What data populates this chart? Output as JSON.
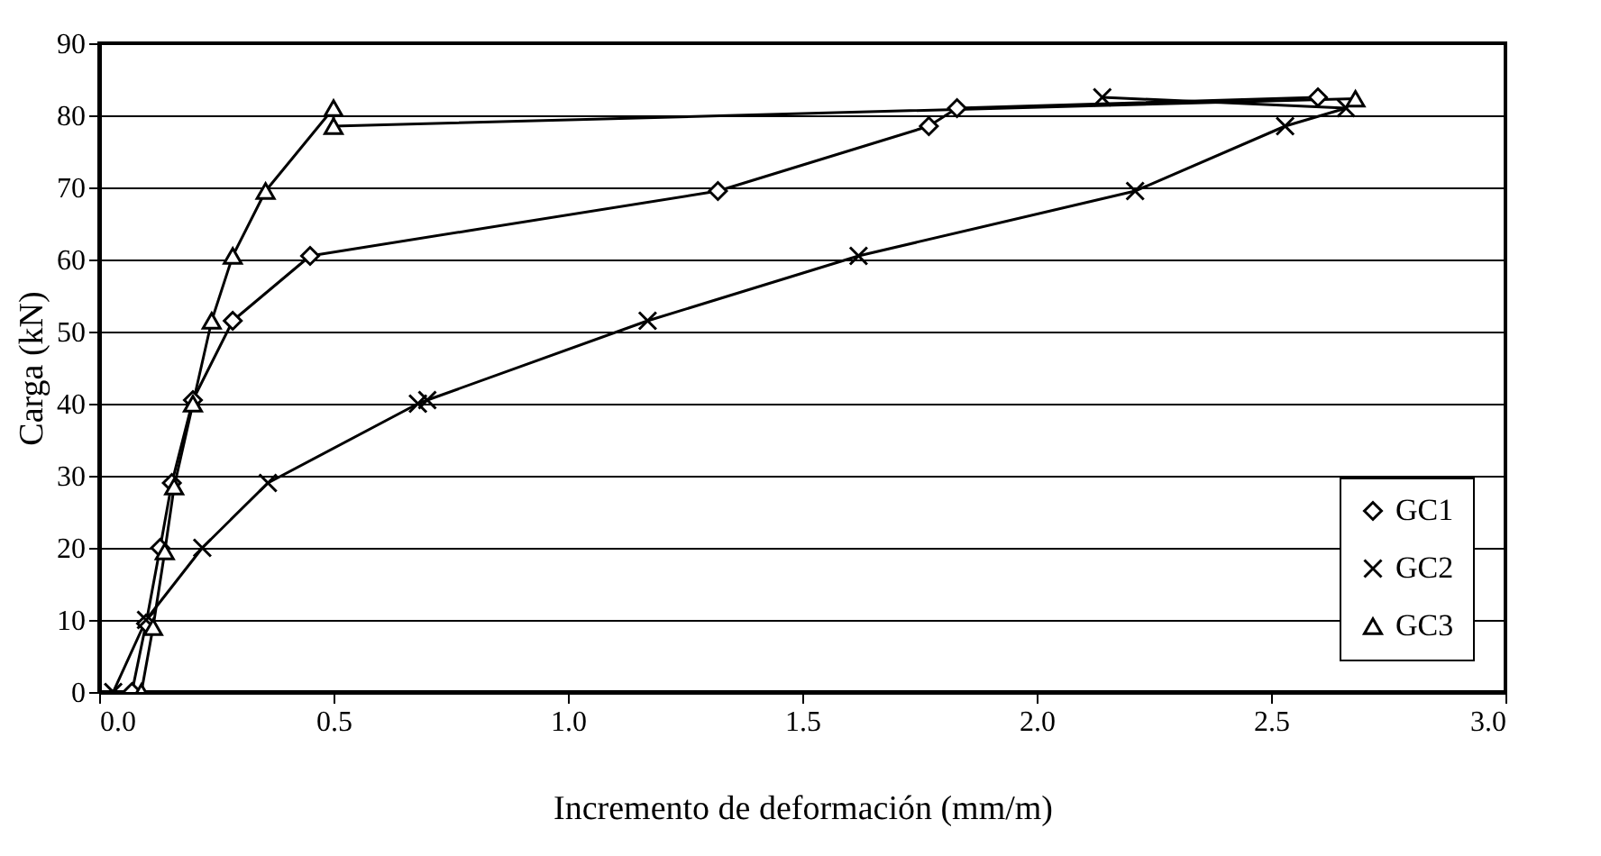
{
  "chart_data": {
    "type": "line",
    "xlabel": "Incremento de deformación (mm/m)",
    "ylabel": "Carga (kN)",
    "xlim": [
      0,
      3
    ],
    "xticks": [
      {
        "value": 0,
        "label": "0.0"
      },
      {
        "value": 0.5,
        "label": "0.5"
      },
      {
        "value": 1,
        "label": "1.0"
      },
      {
        "value": 1.5,
        "label": "1.5"
      },
      {
        "value": 2,
        "label": "2.0"
      },
      {
        "value": 2.5,
        "label": "2.5"
      },
      {
        "value": 3,
        "label": "3.0"
      }
    ],
    "ylim": [
      0,
      90
    ],
    "yticks": [
      0,
      10,
      20,
      30,
      40,
      50,
      60,
      70,
      80,
      90
    ],
    "grid": "y",
    "legend": "bottom right",
    "line_style": "solid",
    "series": [
      {
        "name": "GC1",
        "color": "#000000",
        "marker": "diamond",
        "x": [
          0.07,
          0.1,
          0.13,
          0.155,
          0.2,
          0.285,
          0.45,
          1.32,
          1.77,
          1.83,
          2.6
        ],
        "values": [
          0,
          9.5,
          20,
          29,
          40.5,
          51.5,
          60.5,
          69.5,
          78.5,
          81,
          82.5
        ]
      },
      {
        "name": "GC2",
        "color": "#000000",
        "marker": "cross",
        "x": [
          0.03,
          0.1,
          0.22,
          0.36,
          0.68,
          0.7,
          1.17,
          1.62,
          2.21,
          2.53,
          2.66,
          2.14
        ],
        "values": [
          0,
          10,
          20,
          29,
          40,
          40.5,
          51.5,
          60.5,
          69.5,
          78.5,
          81,
          82.5
        ]
      },
      {
        "name": "GC3",
        "color": "#000000",
        "marker": "triangle",
        "x": [
          0.09,
          0.115,
          0.14,
          0.16,
          0.2,
          0.24,
          0.285,
          0.355,
          0.5,
          0.5,
          2.68
        ],
        "values": [
          0,
          9,
          19.5,
          28.5,
          40,
          51.5,
          60.5,
          69.5,
          81,
          78.5,
          82.3
        ]
      }
    ]
  }
}
